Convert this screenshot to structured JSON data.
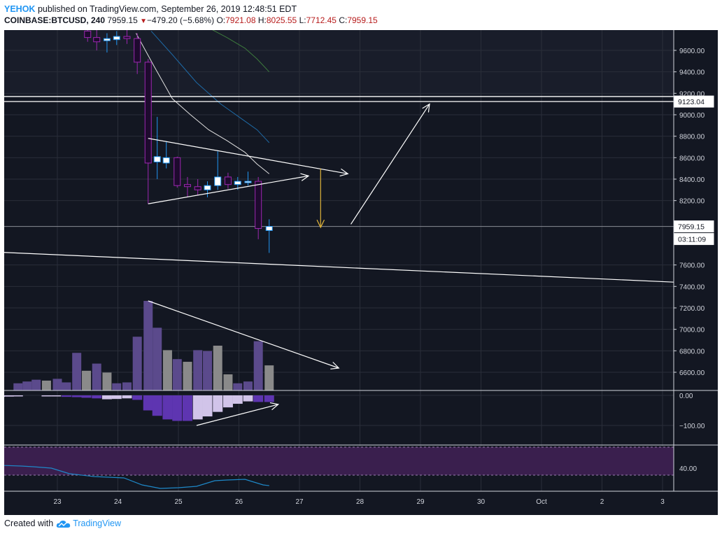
{
  "header": {
    "author": "YEHOK",
    "published_text": "published on TradingView.com, September 26, 2019 12:48:51 EDT",
    "symbol": "COINBASE:BTCUSD, 240",
    "last": "7959.15",
    "change": "−479.20 (−5.68%)",
    "o_label": "O:",
    "o_value": "7921.08",
    "h_label": "H:",
    "h_value": "8025.55",
    "l_label": "L:",
    "l_value": "7712.45",
    "c_label": "C:",
    "c_value": "7959.15"
  },
  "footer": {
    "created_with": "Created with",
    "brand": "TradingView"
  },
  "colors": {
    "background": "#131722",
    "grid": "#2a2e39",
    "text": "#d1d4dc",
    "candle_up": "#ffffff",
    "candle_down": "#1e0a2e",
    "wick_up": "#2196f3",
    "wick_down": "#9c27b0",
    "ema_white": "#e0e0e0",
    "ema_blue": "#1e6aa6",
    "ema_green": "#3d7a3d",
    "volume_purple": "#5b4a8c",
    "volume_gray": "#8a8a8a",
    "macd_dark": "#5e35b1",
    "macd_light": "#d1c4e9",
    "rsi_band": "#3a1f4e",
    "rsi_line": "#1e88c8",
    "arrow_yellow": "#e0b43a"
  },
  "chart_data": {
    "type": "candlestick",
    "title": "COINBASE:BTCUSD, 240",
    "x_ticks": [
      "23",
      "24",
      "25",
      "26",
      "27",
      "28",
      "29",
      "30",
      "Oct",
      "2",
      "3"
    ],
    "y_ticks": [
      9600,
      9400,
      9200,
      9000,
      8800,
      8600,
      8400,
      8200,
      7600,
      7400,
      7200,
      7000,
      6800,
      6600
    ],
    "y_tick_labels": [
      "9600.00",
      "9400.00",
      "9200.00",
      "9000.00",
      "8800.00",
      "8600.00",
      "8400.00",
      "8200.00",
      "7600.00",
      "7400.00",
      "7200.00",
      "7000.00",
      "6800.00",
      "6600.00"
    ],
    "price_label": "7959.15",
    "countdown_label": "03:11:09",
    "level_label": "9123.04",
    "level_values": [
      9123.04,
      9170
    ],
    "candles": [
      {
        "x": 23.5,
        "o": 9780,
        "h": 9900,
        "l": 9680,
        "c": 9720
      },
      {
        "x": 23.65,
        "o": 9720,
        "h": 9850,
        "l": 9600,
        "c": 9680
      },
      {
        "x": 23.82,
        "o": 9690,
        "h": 9760,
        "l": 9580,
        "c": 9710
      },
      {
        "x": 23.98,
        "o": 9700,
        "h": 9780,
        "l": 9650,
        "c": 9730
      },
      {
        "x": 24.15,
        "o": 9730,
        "h": 9800,
        "l": 9660,
        "c": 9710
      },
      {
        "x": 24.32,
        "o": 9710,
        "h": 9760,
        "l": 9380,
        "c": 9490
      },
      {
        "x": 24.5,
        "o": 9490,
        "h": 9520,
        "l": 8170,
        "c": 8550
      },
      {
        "x": 24.65,
        "o": 8560,
        "h": 8980,
        "l": 8400,
        "c": 8610
      },
      {
        "x": 24.8,
        "o": 8550,
        "h": 8750,
        "l": 8500,
        "c": 8600
      },
      {
        "x": 24.98,
        "o": 8600,
        "h": 8610,
        "l": 8320,
        "c": 8340
      },
      {
        "x": 25.15,
        "o": 8350,
        "h": 8420,
        "l": 8230,
        "c": 8330
      },
      {
        "x": 25.32,
        "o": 8330,
        "h": 8400,
        "l": 8250,
        "c": 8300
      },
      {
        "x": 25.48,
        "o": 8300,
        "h": 8380,
        "l": 8230,
        "c": 8340
      },
      {
        "x": 25.65,
        "o": 8340,
        "h": 8660,
        "l": 8300,
        "c": 8420
      },
      {
        "x": 25.82,
        "o": 8420,
        "h": 8460,
        "l": 8310,
        "c": 8350
      },
      {
        "x": 25.98,
        "o": 8350,
        "h": 8420,
        "l": 8300,
        "c": 8380
      },
      {
        "x": 26.15,
        "o": 8370,
        "h": 8470,
        "l": 8340,
        "c": 8380
      },
      {
        "x": 26.32,
        "o": 8380,
        "h": 8420,
        "l": 7840,
        "c": 7940
      },
      {
        "x": 26.5,
        "o": 7921.08,
        "h": 8025.55,
        "l": 7712.45,
        "c": 7959.15
      }
    ],
    "series": [
      {
        "name": "EMA white",
        "points": [
          [
            24.3,
            9760
          ],
          [
            24.6,
            9450
          ],
          [
            24.9,
            9150
          ],
          [
            25.2,
            9000
          ],
          [
            25.5,
            8860
          ],
          [
            25.8,
            8760
          ],
          [
            26.1,
            8650
          ],
          [
            26.3,
            8540
          ],
          [
            26.5,
            8450
          ]
        ]
      },
      {
        "name": "EMA blue",
        "points": [
          [
            24.55,
            9780
          ],
          [
            24.9,
            9560
          ],
          [
            25.3,
            9300
          ],
          [
            25.7,
            9100
          ],
          [
            26.1,
            8940
          ],
          [
            26.3,
            8860
          ],
          [
            26.5,
            8740
          ]
        ]
      },
      {
        "name": "EMA green",
        "points": [
          [
            25.4,
            9840
          ],
          [
            25.8,
            9720
          ],
          [
            26.1,
            9620
          ],
          [
            26.3,
            9520
          ],
          [
            26.5,
            9400
          ]
        ]
      }
    ],
    "volume": {
      "x": [
        22.35,
        22.5,
        22.65,
        22.82,
        23.0,
        23.15,
        23.32,
        23.48,
        23.65,
        23.82,
        23.98,
        24.15,
        24.32,
        24.5,
        24.65,
        24.82,
        24.98,
        25.15,
        25.32,
        25.48,
        25.65,
        25.82,
        25.98,
        26.15,
        26.32,
        26.5
      ],
      "values": [
        0.08,
        0.1,
        0.12,
        0.11,
        0.13,
        0.09,
        0.42,
        0.22,
        0.3,
        0.2,
        0.08,
        0.09,
        0.6,
        1.0,
        0.7,
        0.45,
        0.35,
        0.32,
        0.45,
        0.44,
        0.5,
        0.18,
        0.08,
        0.1,
        0.55,
        0.28
      ]
    },
    "macd": {
      "y_tick_labels": [
        "0.00",
        "−100.00"
      ],
      "y_ticks": [
        0,
        -100
      ],
      "x": [
        22.05,
        22.2,
        22.35,
        22.82,
        22.98,
        23.15,
        23.32,
        23.48,
        23.65,
        23.82,
        23.98,
        24.15,
        24.32,
        24.5,
        24.65,
        24.82,
        24.98,
        25.15,
        25.32,
        25.48,
        25.65,
        25.82,
        25.98,
        26.15,
        26.32,
        26.5
      ],
      "values": [
        -5,
        -4,
        -3,
        -2,
        -3,
        -5,
        -6,
        -8,
        -10,
        -13,
        -12,
        -10,
        -15,
        -50,
        -68,
        -80,
        -85,
        -85,
        -80,
        -70,
        -55,
        -40,
        -28,
        -20,
        -22,
        -22
      ]
    },
    "rsi": {
      "y_tick_labels": [
        "40.00"
      ],
      "y_ticks": [
        40
      ],
      "band": [
        30,
        70
      ],
      "points": [
        [
          22.05,
          44
        ],
        [
          22.4,
          43
        ],
        [
          22.6,
          42
        ],
        [
          22.9,
          40
        ],
        [
          23.2,
          32
        ],
        [
          23.6,
          28
        ],
        [
          24.1,
          26
        ],
        [
          24.4,
          16
        ],
        [
          24.7,
          11
        ],
        [
          25.0,
          12
        ],
        [
          25.3,
          14
        ],
        [
          25.6,
          22
        ],
        [
          25.8,
          23
        ],
        [
          26.1,
          24
        ],
        [
          26.4,
          16
        ],
        [
          26.5,
          15
        ]
      ]
    },
    "annotations": [
      {
        "kind": "line",
        "from": [
          24.5,
          8780
        ],
        "to": [
          27.8,
          8450
        ],
        "arrow": true
      },
      {
        "kind": "line",
        "from": [
          24.5,
          8170
        ],
        "to": [
          27.15,
          8430
        ],
        "arrow": true
      },
      {
        "kind": "line",
        "from": [
          22.0,
          7720
        ],
        "to": [
          33.0,
          7440
        ]
      },
      {
        "kind": "yellow-arrow",
        "from": [
          27.35,
          8500
        ],
        "to": [
          27.35,
          7950
        ]
      },
      {
        "kind": "line",
        "from": [
          27.85,
          7980
        ],
        "to": [
          29.15,
          9100
        ],
        "arrow": true
      },
      {
        "kind": "volume-line",
        "from": [
          24.5,
          1.0
        ],
        "to": [
          27.65,
          0.25
        ],
        "arrow": true
      },
      {
        "kind": "macd-line",
        "from": [
          25.3,
          -100
        ],
        "to": [
          26.65,
          -30
        ],
        "arrow": true
      }
    ]
  }
}
